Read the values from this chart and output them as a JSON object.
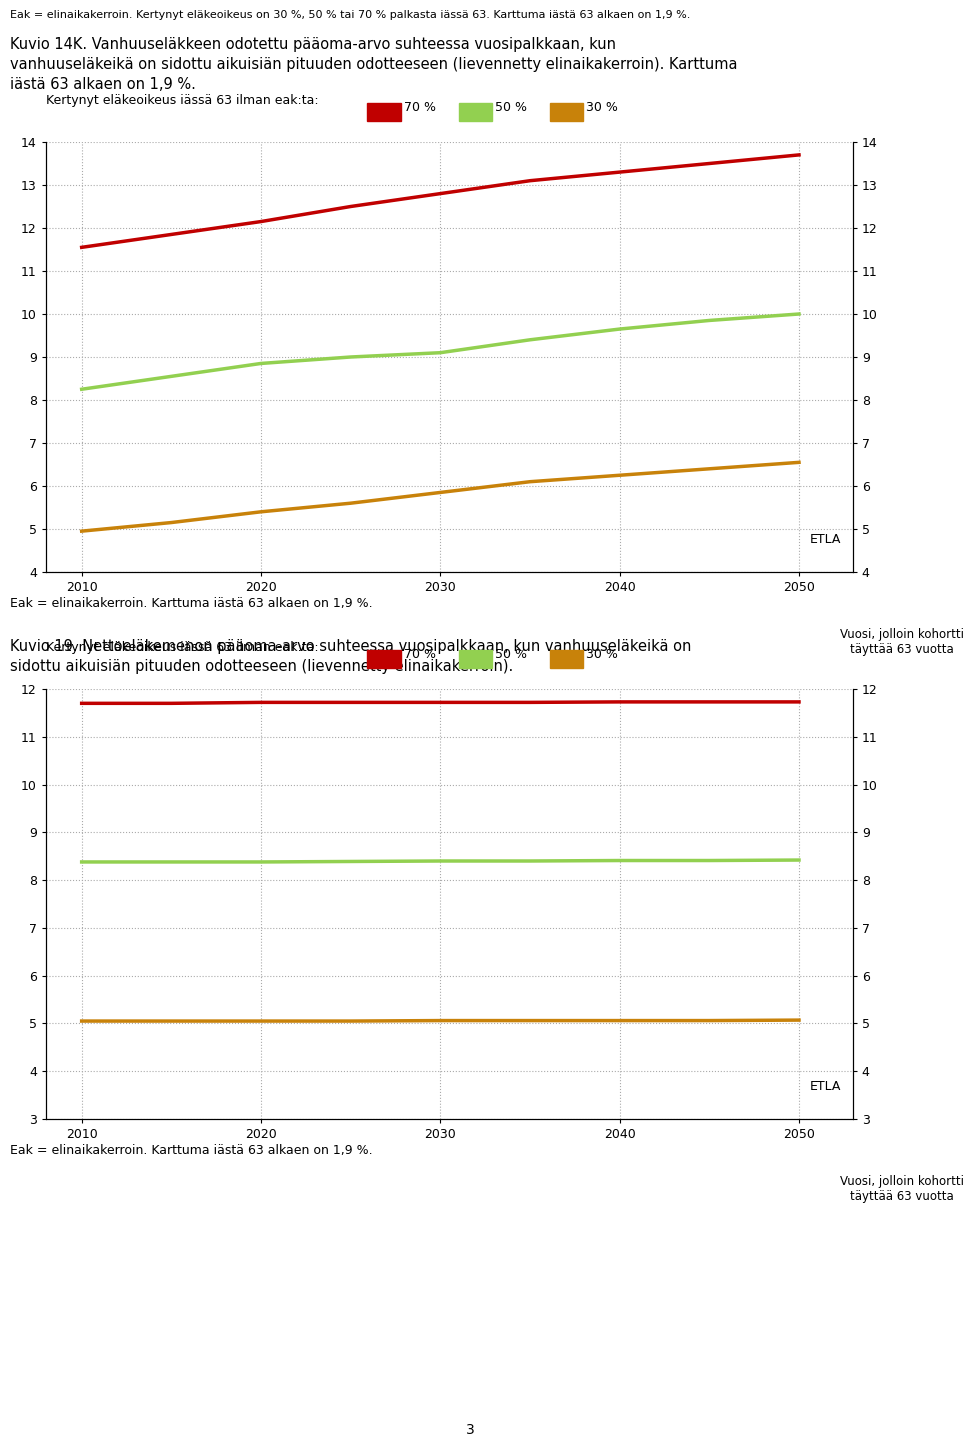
{
  "header_text": "Eak = elinaikakerroin. Kertynyt eläkeoikeus on 30 %, 50 % tai 70 % palkasta iässä 63. Karttuma iästä 63 alkaen on 1,9 %.",
  "fig14_title_line1": "Kuvio 14K. Vanhuuseläkkeen odotettu pääoma-arvo suhteessa vuosipalkkaan, kun",
  "fig14_title_line2": "vanhuuseläkeikä on sidottu aikuisiän pituuden odotteeseen (lievennetty elinaikakerroin). Karttuma",
  "fig14_title_line3": "iästä 63 alkaen on 1,9 %.",
  "fig19_title_line1": "Kuvio 19. Nettoeläkemenon pääoma-arvo suhteessa vuosipalkkaan, kun vanhuuseläkeikä on",
  "fig19_title_line2": "sidottu aikuisiän pituuden odotteeseen (lievennetty elinaikakerroin).",
  "legend_label": "Kertynyt eläkeoikeus iässä 63 ilman eak:ta:",
  "legend_70": "70 %",
  "legend_50": "50 %",
  "legend_30": "30 %",
  "color_70": "#C00000",
  "color_50": "#92D050",
  "color_30": "#C8820A",
  "xlabel": "Vuosi, jolloin kohortti\ntäyttää 63 vuotta",
  "etla_label": "ETLA",
  "footnote1": "Eak = elinaikakerroin. Karttuma iästä 63 alkaen on 1,9 %.",
  "footnote2": "Eak = elinaikakerroin. Karttuma iästä 63 alkaen on 1,9 %.",
  "page_number": "3",
  "x_values": [
    2010,
    2015,
    2020,
    2025,
    2030,
    2035,
    2040,
    2045,
    2050
  ],
  "fig14_70": [
    11.55,
    11.85,
    12.15,
    12.5,
    12.8,
    13.1,
    13.3,
    13.5,
    13.7
  ],
  "fig14_50": [
    8.25,
    8.55,
    8.85,
    9.0,
    9.1,
    9.4,
    9.65,
    9.85,
    10.0
  ],
  "fig14_30": [
    4.95,
    5.15,
    5.4,
    5.6,
    5.85,
    6.1,
    6.25,
    6.4,
    6.55
  ],
  "fig14_ylim": [
    4,
    14
  ],
  "fig14_yticks": [
    4,
    5,
    6,
    7,
    8,
    9,
    10,
    11,
    12,
    13,
    14
  ],
  "fig19_70": [
    11.7,
    11.7,
    11.72,
    11.72,
    11.72,
    11.72,
    11.73,
    11.73,
    11.73
  ],
  "fig19_50": [
    8.38,
    8.38,
    8.38,
    8.39,
    8.4,
    8.4,
    8.41,
    8.41,
    8.42
  ],
  "fig19_30": [
    5.05,
    5.05,
    5.05,
    5.05,
    5.06,
    5.06,
    5.06,
    5.06,
    5.07
  ],
  "fig19_ylim": [
    3,
    12
  ],
  "fig19_yticks": [
    3,
    4,
    5,
    6,
    7,
    8,
    9,
    10,
    11,
    12
  ],
  "x_ticks": [
    2010,
    2020,
    2030,
    2040,
    2050
  ],
  "x_lim": [
    2008,
    2053
  ],
  "line_width": 2.5,
  "background_color": "#FFFFFF",
  "grid_color": "#AAAAAA",
  "text_color": "#000000",
  "font_size_header": 8.0,
  "font_size_title": 10.5,
  "font_size_axis": 9.0,
  "font_size_legend": 9.0,
  "font_size_footnote": 9.0,
  "font_size_page": 10.0
}
